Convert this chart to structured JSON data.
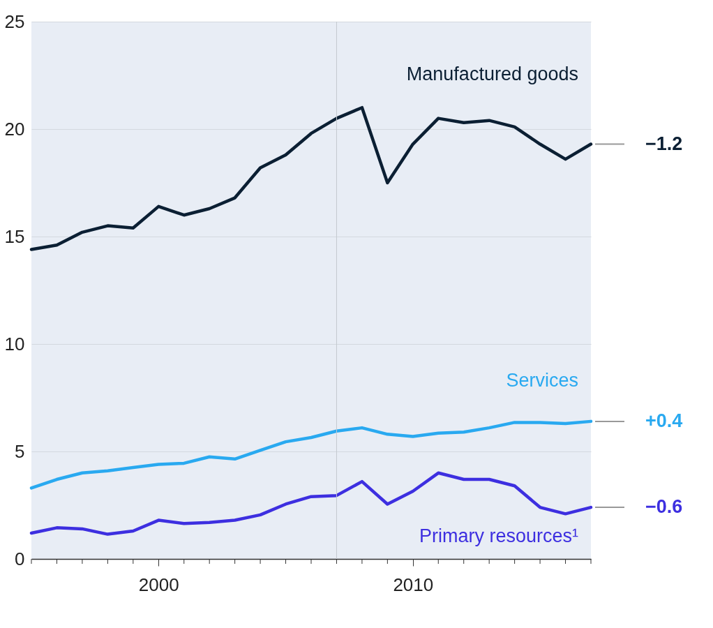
{
  "chart_data": {
    "type": "line",
    "x": [
      1995,
      1996,
      1997,
      1998,
      1999,
      2000,
      2001,
      2002,
      2003,
      2004,
      2005,
      2006,
      2007,
      2008,
      2009,
      2010,
      2011,
      2012,
      2013,
      2014,
      2015,
      2016,
      2017
    ],
    "series": [
      {
        "name": "Manufactured goods",
        "color": "#0b1f33",
        "values": [
          14.4,
          14.6,
          15.2,
          15.5,
          15.4,
          16.4,
          16.0,
          16.3,
          16.8,
          18.2,
          18.8,
          19.8,
          20.5,
          21.0,
          17.5,
          19.3,
          20.5,
          20.3,
          20.4,
          20.1,
          19.3,
          18.6,
          19.3
        ]
      },
      {
        "name": "Services",
        "color": "#29a9f0",
        "values": [
          3.3,
          3.7,
          4.0,
          4.1,
          4.25,
          4.4,
          4.45,
          4.75,
          4.65,
          5.05,
          5.45,
          5.65,
          5.95,
          6.1,
          5.8,
          5.7,
          5.85,
          5.9,
          6.1,
          6.35,
          6.35,
          6.3,
          6.4
        ]
      },
      {
        "name": "Primary resources¹",
        "color": "#3d2fe0",
        "values": [
          1.2,
          1.45,
          1.4,
          1.15,
          1.3,
          1.8,
          1.65,
          1.7,
          1.8,
          2.05,
          2.55,
          2.9,
          2.95,
          3.6,
          2.55,
          3.15,
          4.0,
          3.7,
          3.7,
          3.4,
          2.4,
          2.1,
          2.4
        ]
      }
    ],
    "xlim": [
      1995,
      2017
    ],
    "xticks": [
      {
        "value": 1995,
        "label": null
      },
      {
        "value": 1996,
        "label": null
      },
      {
        "value": 1997,
        "label": null
      },
      {
        "value": 1998,
        "label": null
      },
      {
        "value": 1999,
        "label": null
      },
      2000,
      {
        "value": 2001,
        "label": null
      },
      {
        "value": 2002,
        "label": null
      },
      {
        "value": 2003,
        "label": null
      },
      {
        "value": 2004,
        "label": null
      },
      {
        "value": 2005,
        "label": null
      },
      {
        "value": 2006,
        "label": null
      },
      {
        "value": 2007,
        "label": null
      },
      {
        "value": 2008,
        "label": null
      },
      {
        "value": 2009,
        "label": null
      },
      2010,
      {
        "value": 2011,
        "label": null
      },
      {
        "value": 2012,
        "label": null
      },
      {
        "value": 2013,
        "label": null
      },
      {
        "value": 2014,
        "label": null
      },
      {
        "value": 2015,
        "label": null
      },
      {
        "value": 2016,
        "label": null
      },
      {
        "value": 2017,
        "label": null
      }
    ],
    "ylim": [
      0,
      25
    ],
    "yticks": [
      0,
      5,
      10,
      15,
      20,
      25
    ],
    "annotations": [
      "−1.2",
      "+0.4",
      "−0.6"
    ],
    "grid": "y",
    "legend": false,
    "marker": "none",
    "line_style": "solid",
    "ref_lines": [
      {
        "axis": "x",
        "value": 2007,
        "label": null,
        "color": "#c4c9cf"
      }
    ]
  }
}
